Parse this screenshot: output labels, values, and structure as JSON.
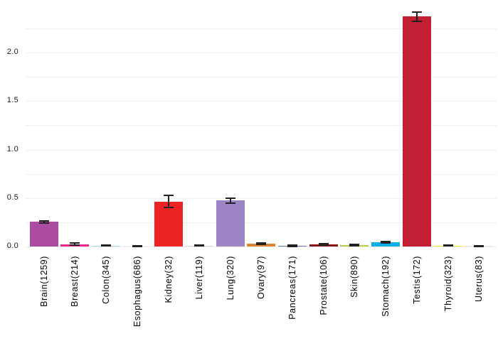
{
  "chart_data": {
    "type": "bar",
    "title": "",
    "xlabel": "",
    "ylabel": "",
    "categories": [
      "Brain(1259)",
      "Breast(214)",
      "Colon(345)",
      "Esophagus(686)",
      "Kidney(32)",
      "Liver(119)",
      "Lung(320)",
      "Ovary(97)",
      "Pancreas(171)",
      "Prostate(106)",
      "Skin(890)",
      "Stomach(192)",
      "Testis(172)",
      "Thyroid(323)",
      "Uterus(83)"
    ],
    "values": [
      0.255,
      0.025,
      0.008,
      0.004,
      0.465,
      0.008,
      0.475,
      0.03,
      0.008,
      0.022,
      0.015,
      0.044,
      2.37,
      0.01,
      0.006
    ],
    "errors": [
      0.012,
      0.008,
      0.004,
      0.003,
      0.065,
      0.004,
      0.025,
      0.01,
      0.005,
      0.006,
      0.005,
      0.01,
      0.05,
      0.005,
      0.004
    ],
    "bar_colors": [
      "#ab4ca2",
      "#ec268b",
      "#a6d9f2",
      "#f5f5f5",
      "#ee2324",
      "#dcdce2",
      "#9c84c5",
      "#dd8430",
      "#6775b5",
      "#8d1416",
      "#bccf4b",
      "#0caeea",
      "#c21f35",
      "#f4f02a",
      "#f8e3ce"
    ],
    "ylim": [
      0,
      2.5
    ],
    "yticks": [
      0,
      0.5,
      1.0,
      1.5,
      2.0
    ],
    "ytick_labels": [
      "0.0",
      "0.5",
      "1.0",
      "1.5",
      "2.0"
    ],
    "grid": true,
    "grid_step": 0.25,
    "legend_position": "none",
    "error_bar_color": "#222222",
    "gridline_color": "#efefef",
    "background_color": "#ffffff"
  }
}
